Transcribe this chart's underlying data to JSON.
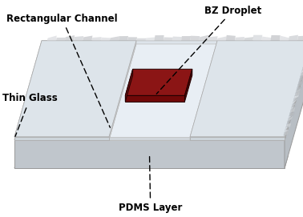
{
  "bg_color": "#ffffff",
  "pdms_top_color": "#d2d8de",
  "pdms_front_color": "#c0c6cc",
  "pdms_right_color": "#b8bec4",
  "pdms_bottom_color": "#a8aeb4",
  "glass_top_color": "#dde4ea",
  "glass_front_color": "#cdd4da",
  "glass_right_color": "#bfc6cc",
  "channel_floor_color": "#e8eef4",
  "channel_wall_color": "#c8cdd2",
  "channel_front_color": "#d0d5da",
  "droplet_top": "#8b1515",
  "droplet_front": "#700808",
  "droplet_right": "#4a0505",
  "droplet_left": "#6a1010",
  "texture_color": "#c8d0d8",
  "labels": {
    "rectangular_channel": "Rectangular Channel",
    "bz_droplet": "BZ Droplet",
    "thin_glass": "Thin Glass",
    "pdms_layer": "PDMS Layer"
  },
  "label_fontsize": 8.5,
  "label_fontweight": "bold"
}
